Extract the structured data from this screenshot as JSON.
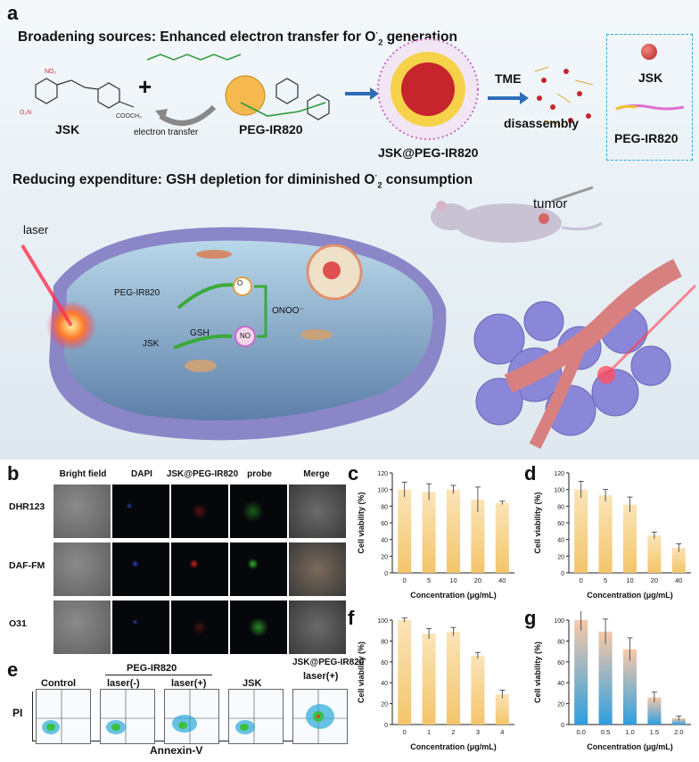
{
  "panel_labels": {
    "a": "a",
    "b": "b",
    "c": "c",
    "d": "d",
    "e": "e",
    "f": "f",
    "g": "g"
  },
  "panel_a": {
    "heading1": "Broadening sources: Enhanced electron transfer for O",
    "heading1_tail": " generation",
    "heading2": "Reducing expenditure: GSH depletion for diminished O",
    "heading2_tail": " consumption",
    "o2_sup": "2",
    "o2_superscript": "·",
    "jsk": "JSK",
    "plus": "+",
    "electron_transfer": "electron transfer",
    "peg_ir820": "PEG-IR820",
    "nanoparticle": "JSK@PEG-IR820",
    "tme": "TME",
    "disassembly": "disassembly",
    "legend_jsk": "JSK",
    "legend_peg": "PEG-IR820",
    "laser": "laser",
    "tumor": "tumor",
    "cell_peg": "PEG-IR820",
    "cell_jsk": "JSK",
    "gsh": "GSH",
    "no": "NO",
    "o2": "O",
    "onoo": "ONOO⁻"
  },
  "panel_b": {
    "columns": [
      "Bright field",
      "DAPI",
      "JSK@PEG-IR820",
      "probe",
      "Merge"
    ],
    "rows": [
      "DHR123",
      "DAF-FM",
      "O31"
    ]
  },
  "panel_e": {
    "group_title": "PEG-IR820",
    "groups": [
      "Control",
      "laser(-)",
      "laser(+)",
      "JSK"
    ],
    "last_group_title": "JSK@PEG-IR820",
    "last_group_sub": "laser(+)",
    "ylabel": "PI",
    "xlabel": "Annexin-V"
  },
  "chart_data": [
    {
      "panel": "c",
      "type": "bar",
      "categories": [
        "0",
        "5",
        "10",
        "20",
        "40"
      ],
      "values": [
        100,
        97,
        100,
        88,
        84
      ],
      "errors": [
        9,
        10,
        5,
        15,
        2
      ],
      "xlabel": "Concentration (μg/mL)",
      "ylabel": "Cell viability (%)",
      "ylim": [
        0,
        120
      ],
      "yticks": [
        0,
        20,
        40,
        60,
        80,
        100,
        120
      ],
      "color": "#f3c56a"
    },
    {
      "panel": "d",
      "type": "bar",
      "categories": [
        "0",
        "5",
        "10",
        "20",
        "40"
      ],
      "values": [
        100,
        93,
        82,
        45,
        30
      ],
      "errors": [
        10,
        7,
        9,
        4,
        5
      ],
      "xlabel": "Concentration (μg/mL)",
      "ylabel": "Cell viability (%)",
      "ylim": [
        0,
        120
      ],
      "yticks": [
        0,
        20,
        40,
        60,
        80,
        100,
        120
      ],
      "color": "#f3c56a"
    },
    {
      "panel": "f",
      "type": "bar",
      "categories": [
        "0",
        "1",
        "2",
        "3",
        "4"
      ],
      "values": [
        100,
        87,
        89,
        66,
        29
      ],
      "errors": [
        2,
        5,
        4,
        3,
        4
      ],
      "xlabel": "Concentration (μg/mL)",
      "ylabel": "Cell viability (%)",
      "ylim": [
        0,
        100
      ],
      "yticks": [
        0,
        20,
        40,
        60,
        80,
        100
      ],
      "color": "#f3c56a"
    },
    {
      "panel": "g",
      "type": "bar",
      "categories": [
        "0.0",
        "0.5",
        "1.0",
        "1.5",
        "2.0"
      ],
      "values": [
        100,
        89,
        72,
        26,
        6
      ],
      "errors": [
        10,
        12,
        11,
        5,
        2
      ],
      "xlabel": "Concentration (μg/mL)",
      "ylabel": "Cell viability (%)",
      "ylim": [
        0,
        100
      ],
      "yticks": [
        0,
        20,
        40,
        60,
        80,
        100
      ],
      "color": "#2e9fe0"
    }
  ]
}
